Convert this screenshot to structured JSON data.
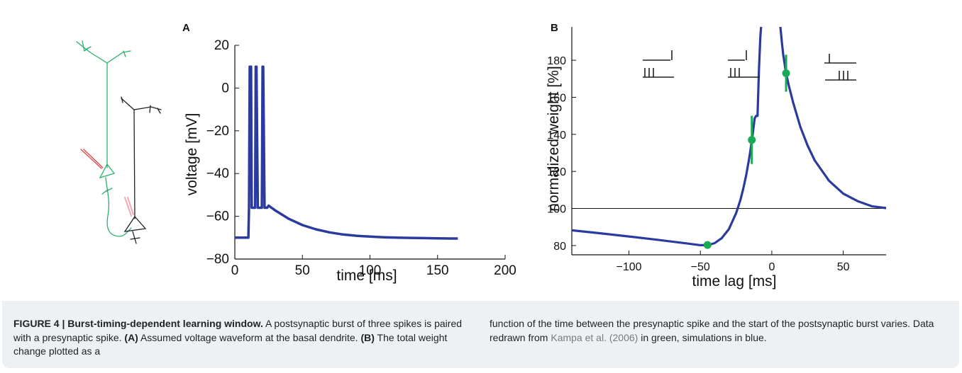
{
  "figure": {
    "caption": {
      "label": "FIGURE 4 | Burst-timing-dependent learning window.",
      "part1": " A postsynaptic burst of three spikes is paired with a presynaptic spike. ",
      "a_label": "(A)",
      "a_text": " Assumed voltage waveform at the basal dendrite. ",
      "b_label": "(B)",
      "b_text": " The total weight change plotted as a",
      "right_part1": "function of the time between the presynaptic spike and the start of the postsynaptic burst varies. Data redrawn from ",
      "citation": "Kampa et al. (2006)",
      "right_part2": " in green, simulations in blue."
    }
  },
  "chart_data": [
    {
      "type": "line",
      "panel_label": "A",
      "xlabel": "time [ms]",
      "ylabel": "voltage [mV]",
      "xlim": [
        0,
        200
      ],
      "ylim": [
        -80,
        20
      ],
      "xticks": [
        0,
        50,
        100,
        150,
        200
      ],
      "yticks": [
        -80,
        -60,
        -40,
        -20,
        0,
        20
      ],
      "series": [
        {
          "color": "#2b3a9e",
          "x": [
            0,
            10,
            10.5,
            11,
            12,
            12.5,
            14,
            15,
            15.5,
            16,
            17,
            17.5,
            19,
            20,
            20.5,
            21,
            22,
            22.5,
            24,
            25,
            30,
            40,
            50,
            60,
            70,
            80,
            90,
            100,
            110,
            120,
            130,
            140,
            150,
            160,
            165
          ],
          "y": [
            -70,
            -70,
            -56,
            10,
            10,
            -56,
            -56,
            -56,
            10,
            10,
            -56,
            -56,
            -56,
            -56,
            10,
            10,
            -56,
            -56,
            -56,
            -55,
            -57.3,
            -61.2,
            -64.1,
            -66.1,
            -67.5,
            -68.5,
            -69.1,
            -69.5,
            -69.8,
            -70,
            -70.1,
            -70.2,
            -70.3,
            -70.4,
            -70.4
          ]
        }
      ]
    },
    {
      "type": "line",
      "panel_label": "B",
      "xlabel": "time lag [ms]",
      "ylabel": "normalized weight [%]",
      "xlim": [
        -140,
        80
      ],
      "ylim": [
        75,
        198
      ],
      "xticks": [
        -100,
        -50,
        0,
        50
      ],
      "yticks": [
        80,
        100,
        120,
        140,
        160,
        180
      ],
      "reference_line": 100,
      "series": [
        {
          "color": "#2b3a9e",
          "x": [
            -140,
            -120,
            -100,
            -80,
            -60,
            -50,
            -45,
            -40,
            -35,
            -30,
            -25,
            -22,
            -20,
            -18,
            -16,
            -15,
            -14,
            -13,
            -12.5,
            -12,
            -11,
            -10,
            -9,
            -8,
            -7.5
          ],
          "y": [
            88.2,
            86.6,
            84.9,
            83.1,
            81.2,
            80.2,
            80.2,
            81.3,
            84,
            88.9,
            97.5,
            104.5,
            110.6,
            117.8,
            126.3,
            131.2,
            136.5,
            142.3,
            145.4,
            148.6,
            150,
            150,
            175,
            193,
            198
          ]
        },
        {
          "color": "#2b3a9e",
          "x": [
            6,
            7,
            8,
            9,
            10,
            12,
            15,
            20,
            25,
            30,
            40,
            50,
            60,
            70,
            80
          ],
          "y": [
            198,
            190,
            183,
            178,
            173,
            166,
            157,
            144,
            134,
            126,
            115,
            108,
            104,
            101.2,
            100.2
          ]
        },
        {
          "name": "",
          "color": "#1aaa55",
          "points": [
            {
              "x": -45,
              "y": 80.3,
              "err": 1.5
            },
            {
              "x": -14,
              "y": 137,
              "err": 13
            },
            {
              "x": 10,
              "y": 173,
              "err": 10
            }
          ]
        }
      ]
    }
  ]
}
